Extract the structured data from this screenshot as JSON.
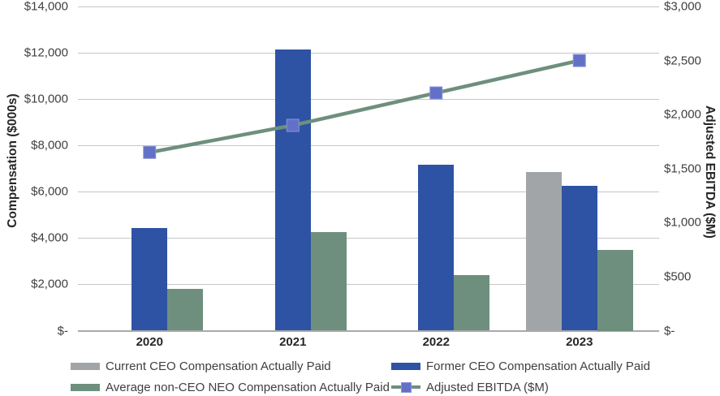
{
  "chart_data": {
    "type": "bar",
    "subtype": "combo-bar-line-dual-axis",
    "title": "",
    "categories": [
      "2020",
      "2021",
      "2022",
      "2023"
    ],
    "bar_series": [
      {
        "id": "current-ceo",
        "name": "Current CEO Compensation Actually Paid",
        "axis": "left",
        "color": "#a2a5a8",
        "values": [
          0,
          0,
          0,
          6850
        ]
      },
      {
        "id": "former-ceo",
        "name": "Former CEO Compensation Actually Paid",
        "axis": "left",
        "color": "#2e53a4",
        "values": [
          4450,
          12150,
          7150,
          6250
        ]
      },
      {
        "id": "avg-non-ceo-neo",
        "name": "Average non-CEO NEO Compensation Actually Paid",
        "axis": "left",
        "color": "#6e8f7e",
        "values": [
          1800,
          4250,
          2400,
          3500
        ]
      }
    ],
    "line_series": [
      {
        "id": "adjusted-ebitda",
        "name": "Adjusted EBITDA ($M)",
        "axis": "right",
        "color": "#6e8f7e",
        "marker_color": "#6271c7",
        "marker_border": "#8a93d8",
        "marker_shape": "square",
        "values": [
          1650,
          1900,
          2200,
          2500
        ]
      }
    ],
    "left_axis": {
      "label": "Compensation ($000s)",
      "min": 0,
      "max": 14000,
      "step": 2000,
      "tick_labels": [
        "$-",
        "$2,000",
        "$4,000",
        "$6,000",
        "$8,000",
        "$10,000",
        "$12,000",
        "$14,000"
      ]
    },
    "right_axis": {
      "label": "Adjusted EBITDA ($M)",
      "min": 0,
      "max": 3000,
      "step": 500,
      "tick_labels": [
        "$-",
        "$500",
        "$1,000",
        "$1,500",
        "$2,000",
        "$2,500",
        "$3,000"
      ]
    },
    "grid": true,
    "gridline_color": "#c6c6c6",
    "legend_position": "bottom"
  },
  "legend": {
    "items": [
      {
        "id": "current-ceo",
        "swatch": "bar",
        "color": "#a2a5a8",
        "label": "Current CEO Compensation Actually Paid"
      },
      {
        "id": "former-ceo",
        "swatch": "bar",
        "color": "#2e53a4",
        "label": "Former CEO Compensation Actually Paid"
      },
      {
        "id": "avg-non-ceo-neo",
        "swatch": "bar",
        "color": "#6e8f7e",
        "label": "Average non-CEO NEO Compensation Actually Paid"
      },
      {
        "id": "adjusted-ebitda",
        "swatch": "line",
        "color": "#6e8f7e",
        "marker_color": "#6271c7",
        "label": "Adjusted EBITDA ($M)"
      }
    ]
  }
}
